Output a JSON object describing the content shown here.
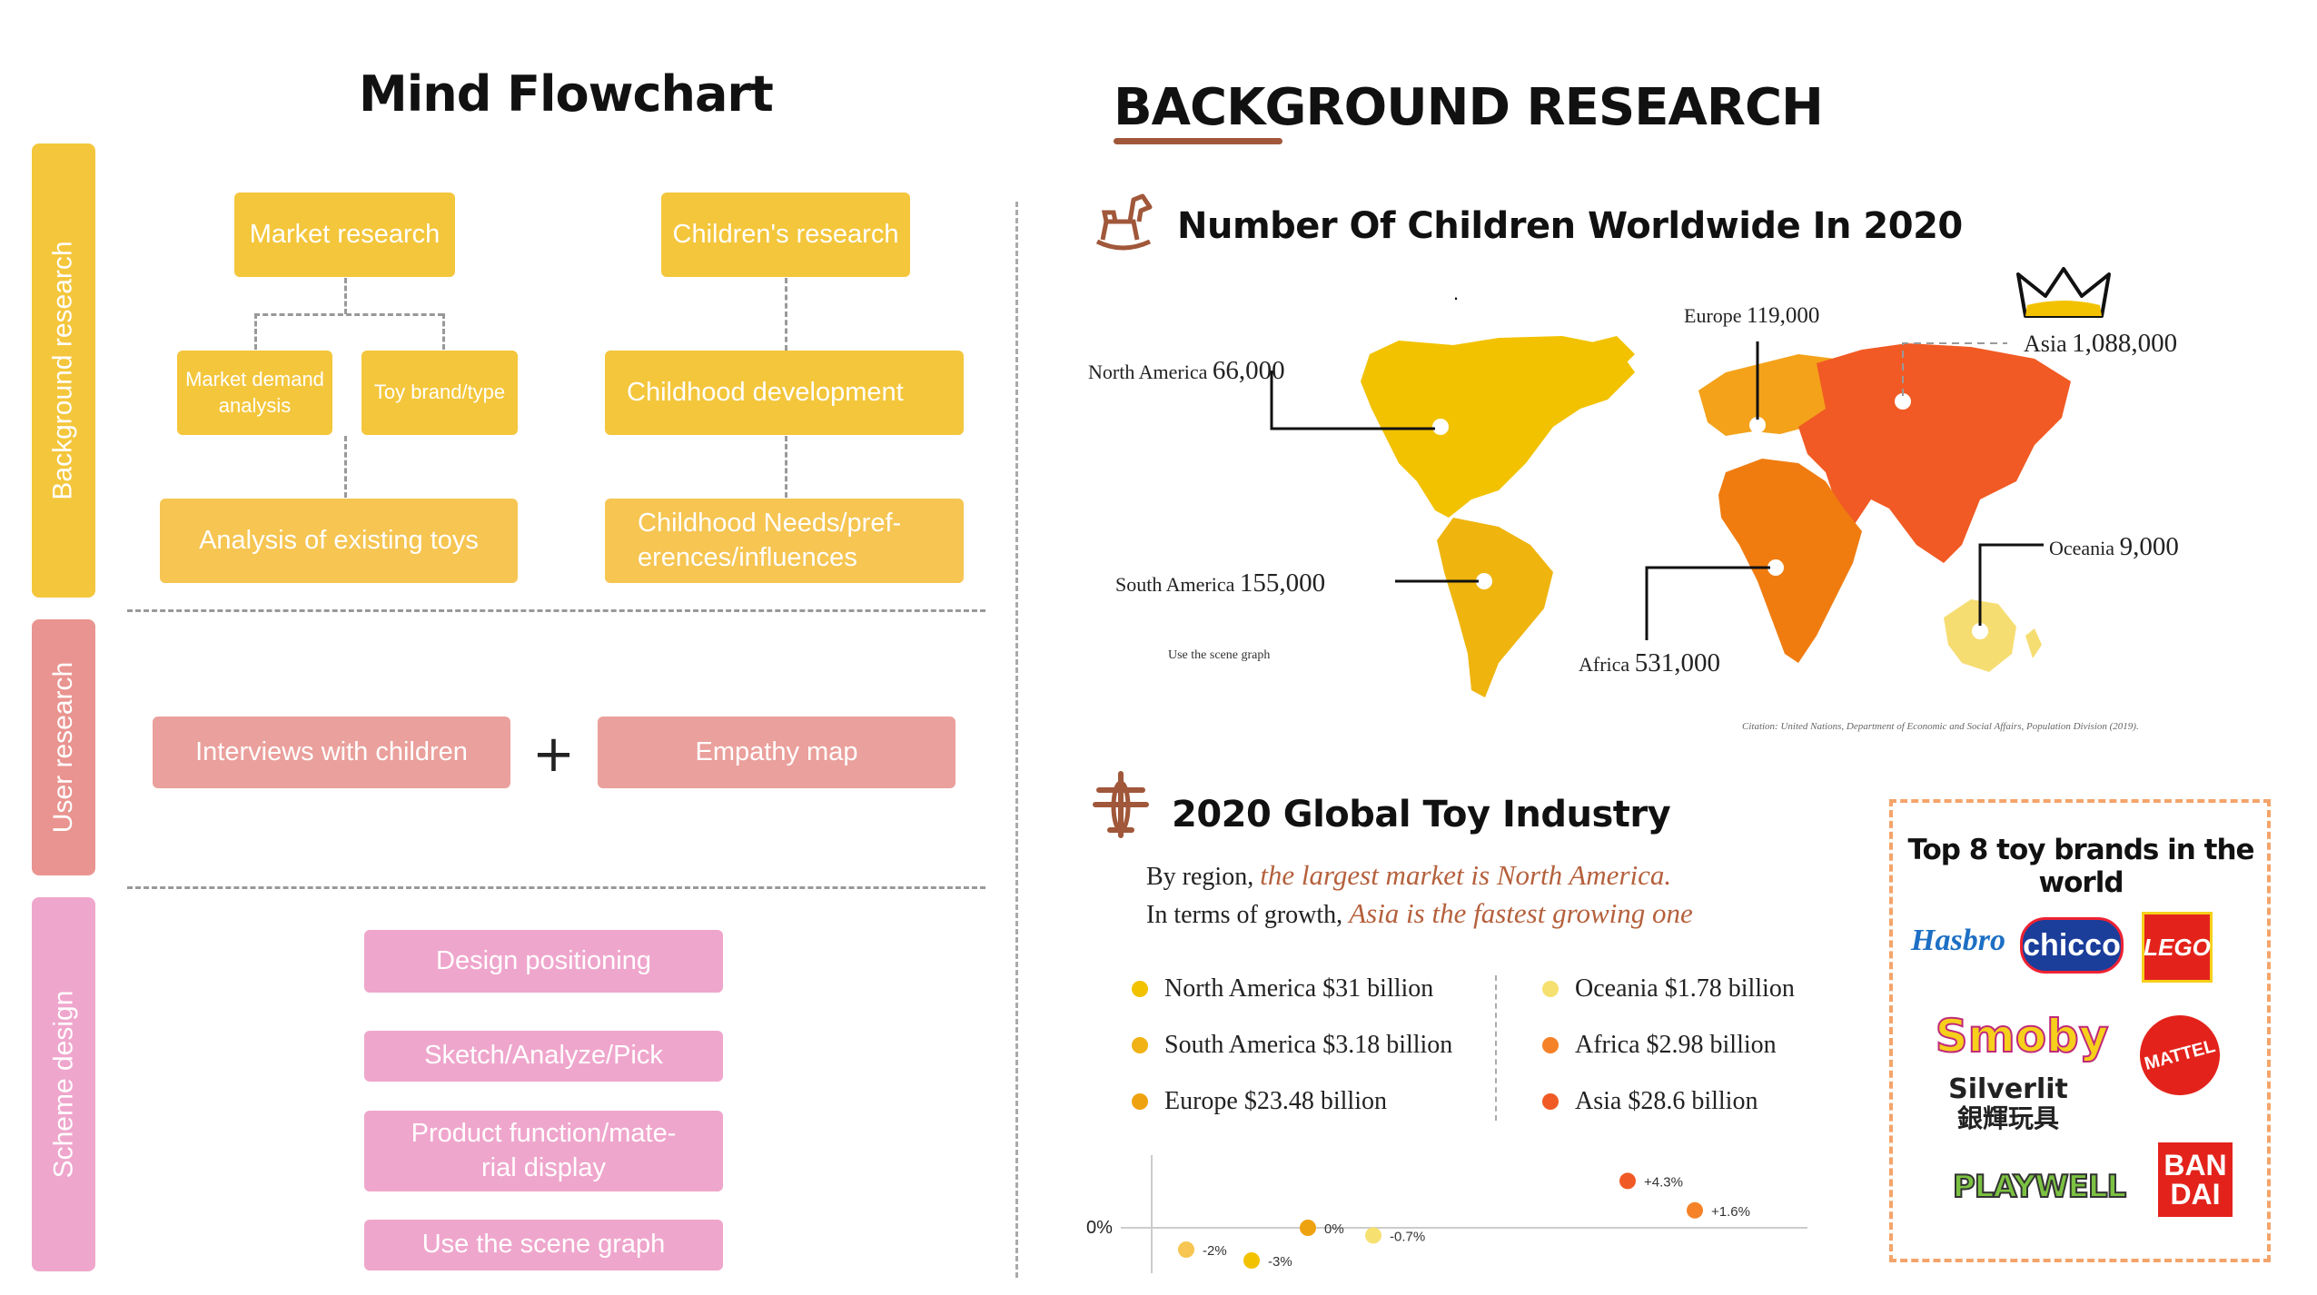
{
  "flowchart": {
    "title": "Mind Flowchart",
    "sections": {
      "background": "Background research",
      "user": "User research",
      "scheme": "Scheme design"
    },
    "boxes": {
      "market_research": "Market research",
      "childrens_research": "Children's research",
      "market_demand": "Market demand analysis",
      "toy_brand": "Toy brand/type",
      "childhood_development": "Childhood development",
      "analysis_toys": "Analysis of existing toys",
      "childhood_needs": "Childhood   Needs/pref-erences/influences",
      "interviews": "Interviews with children",
      "plus": "+",
      "empathy_map": "Empathy map",
      "design_positioning": "Design positioning",
      "sketch": "Sketch/Analyze/Pick",
      "product_function": "Product function/mate-rial display",
      "scene_graph": "Use the scene graph"
    }
  },
  "research": {
    "title": "BACKGROUND RESEARCH",
    "children_title": "Number Of Children Worldwide In 2020",
    "map_dot": ".",
    "regions": {
      "north_america": {
        "name": "North America",
        "value": "66,000"
      },
      "europe": {
        "name": "Europe",
        "value": "119,000"
      },
      "asia": {
        "name": "Asia",
        "value": "1,088,000"
      },
      "oceania": {
        "name": "Oceania",
        "value": "9,000"
      },
      "south_america": {
        "name": "South America",
        "value": "155,000"
      },
      "africa": {
        "name": "Africa",
        "value": "531,000"
      }
    },
    "map_note": "Use the scene graph",
    "citation": "Citation: United Nations, Department of Economic and Social Affairs, Population Division (2019).",
    "toy_title": "2020 Global Toy Industry",
    "line1_prefix": "By region,",
    "line1_em": "the largest market is North America.",
    "line2_prefix": "In terms of growth,",
    "line2_em": "Asia is the fastest growing one",
    "legend": [
      {
        "label": "North America $31 billion",
        "color": "#f2c200"
      },
      {
        "label": "South America $3.18 billion",
        "color": "#f0b215"
      },
      {
        "label": "Europe $23.48 billion",
        "color": "#efa20f"
      },
      {
        "label": "Oceania $1.78 billion",
        "color": "#f6e070"
      },
      {
        "label": "Africa $2.98 billion",
        "color": "#f58228"
      },
      {
        "label": "Asia $28.6 billion",
        "color": "#f05a24"
      }
    ],
    "brands_title": "Top 8 toy brands in the world",
    "brands": [
      "Hasbro",
      "chicco",
      "LEGO",
      "Smoby",
      "MATTEL",
      "Silverlit",
      "銀輝玩具",
      "PLAYWELL",
      "BAN",
      "DAI"
    ],
    "colors": {
      "accent": "#a0573a",
      "orange_text": "#b5603c",
      "flow_yellow": "#f4c63c",
      "flow_red": "#eaa09c",
      "flow_pink": "#efa6cc"
    }
  },
  "chart_data": {
    "type": "scatter",
    "title": "",
    "ylabel": "0%",
    "points": [
      {
        "label": "-2%",
        "y": -2,
        "color": "#f6c552"
      },
      {
        "label": "-3%",
        "y": -3,
        "color": "#f2c200"
      },
      {
        "label": "0%",
        "y": 0,
        "color": "#efa20f"
      },
      {
        "label": "-0.7%",
        "y": -0.7,
        "color": "#f6e070"
      },
      {
        "label": "+4.3%",
        "y": 4.3,
        "color": "#f05a24"
      },
      {
        "label": "+1.6%",
        "y": 1.6,
        "color": "#f58228"
      }
    ],
    "ylim": [
      -4,
      6
    ]
  }
}
